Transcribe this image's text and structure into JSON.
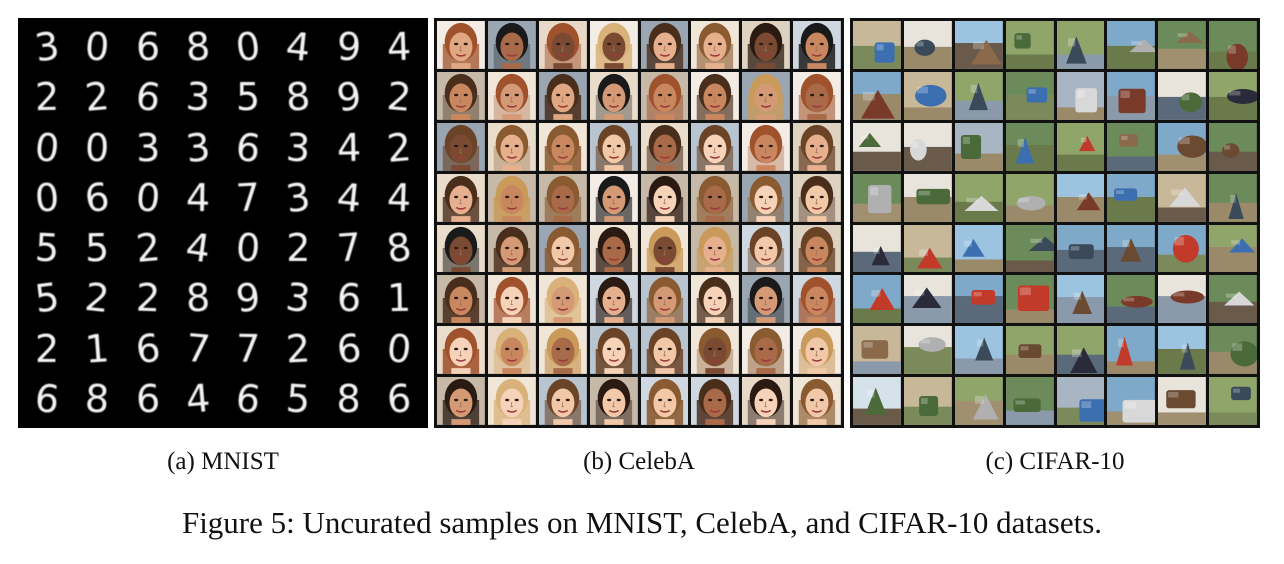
{
  "figure": {
    "caption": "Figure 5: Uncurated samples on MNIST, CelebA, and CIFAR-10 datasets.",
    "panels": [
      {
        "label": "(a) MNIST",
        "content": "mnist-digit-grid",
        "digits": [
          [
            "3",
            "0",
            "6",
            "8",
            "0",
            "4",
            "9",
            "4"
          ],
          [
            "2",
            "2",
            "6",
            "3",
            "5",
            "8",
            "9",
            "2"
          ],
          [
            "0",
            "0",
            "3",
            "3",
            "6",
            "3",
            "4",
            "2"
          ],
          [
            "0",
            "6",
            "0",
            "4",
            "7",
            "3",
            "4",
            "4"
          ],
          [
            "5",
            "5",
            "2",
            "4",
            "0",
            "2",
            "7",
            "8"
          ],
          [
            "5",
            "2",
            "2",
            "8",
            "9",
            "3",
            "6",
            "1"
          ],
          [
            "2",
            "1",
            "6",
            "7",
            "7",
            "2",
            "6",
            "0"
          ],
          [
            "6",
            "8",
            "6",
            "4",
            "6",
            "5",
            "8",
            "6"
          ]
        ]
      },
      {
        "label": "(b) CelebA",
        "content": "celeba-face-grid"
      },
      {
        "label": "(c) CIFAR-10",
        "content": "cifar10-image-grid"
      }
    ]
  },
  "colors": {
    "background": "#ffffff",
    "mnist_bg": "#000000",
    "grid_border": "#111111",
    "text": "#111111"
  }
}
